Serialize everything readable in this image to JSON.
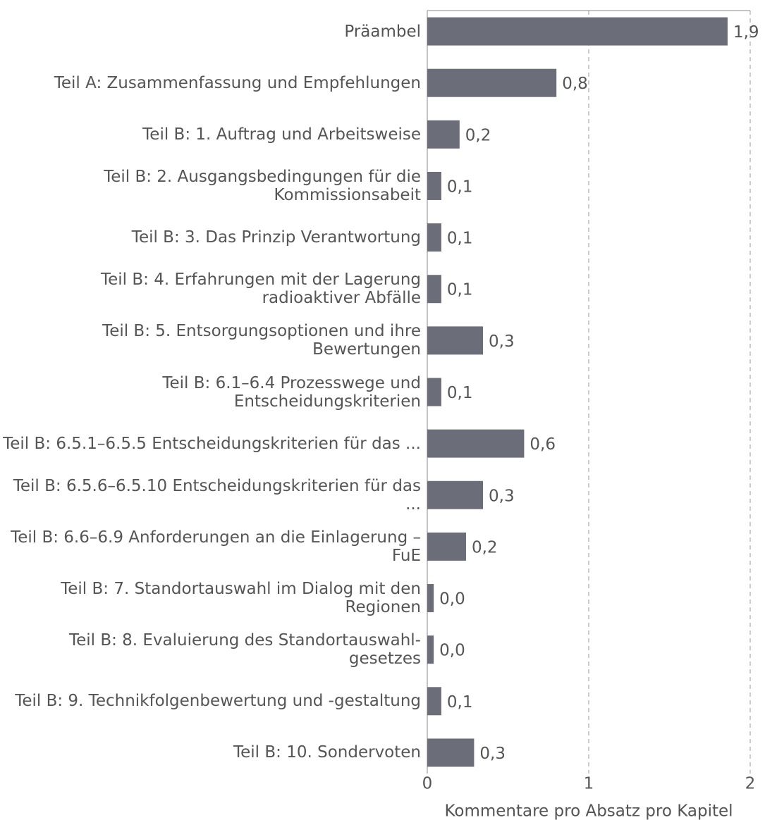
{
  "chart_data": {
    "type": "bar",
    "orientation": "horizontal",
    "xlabel": "Kommentare pro Absatz pro Kapitel",
    "categories": [
      "Präambel",
      "Teil A: Zusammenfassung und Empfehlungen",
      "Teil B: 1. Auftrag und Arbeitsweise",
      "Teil B: 2. Ausgangsbedingungen für die Kommissionsabeit",
      "Teil B: 3. Das Prinzip Verantwortung",
      "Teil B: 4. Erfahrungen mit der Lagerung radioaktiver Abfälle",
      "Teil B: 5. Entsorgungsoptionen und ihre Bewertungen",
      "Teil B: 6.1–6.4 Prozesswege und Entscheidungskriterien",
      "Teil B: 6.5.1–6.5.5 Entscheidungskriterien für das ...",
      "Teil B: 6.5.6–6.5.10 Entscheidungskriterien für das ...",
      "Teil B: 6.6–6.9 Anforderungen an die Einlagerung – FuE",
      "Teil B: 7. Standortauswahl im Dialog mit den Regionen",
      "Teil B: 8. Evaluierung des Standortauswahl- gesetzes",
      "Teil B: 9. Technikfolgenbewertung und -gestaltung",
      "Teil B: 10. Sondervoten"
    ],
    "values": [
      1.86,
      0.8,
      0.2,
      0.087,
      0.087,
      0.087,
      0.345,
      0.087,
      0.6,
      0.345,
      0.24,
      0.04,
      0.04,
      0.087,
      0.29
    ],
    "value_labels": [
      "1,9",
      "0,8",
      "0,2",
      "0,1",
      "0,1",
      "0,1",
      "0,3",
      "0,1",
      "0,6",
      "0,3",
      "0,2",
      "0,0",
      "0,0",
      "0,1",
      "0,3"
    ],
    "color": "#6b6e78",
    "xlim": [
      0,
      2
    ],
    "xticks": [
      0,
      1,
      2
    ],
    "grid": true
  }
}
